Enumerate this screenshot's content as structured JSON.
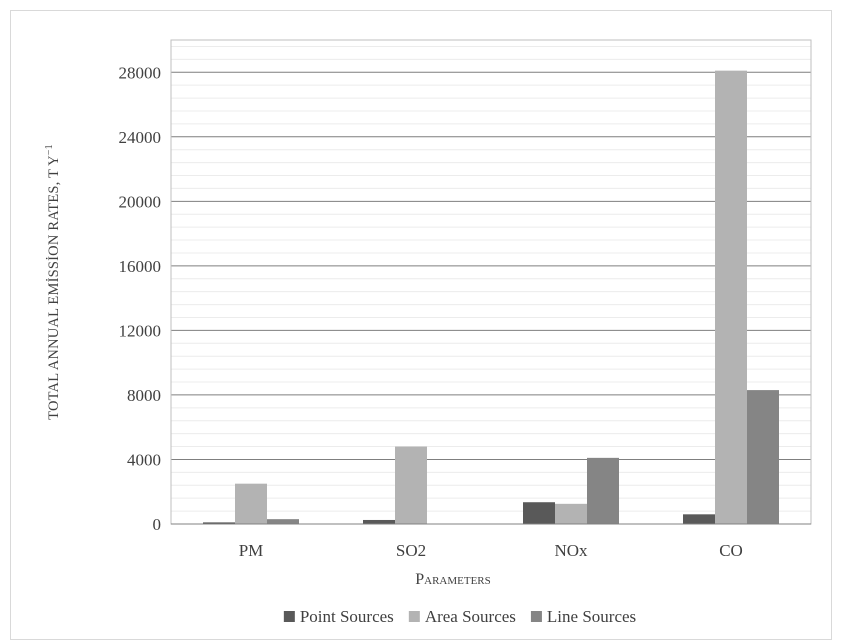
{
  "chart_data": {
    "type": "bar",
    "title": "",
    "xlabel": "Parameters",
    "ylabel": "TOTAL ANNUAL EMİSSİON RATES, T Y",
    "ylabel_sup": "−1",
    "categories": [
      "PM",
      "SO2",
      "NOx",
      "CO"
    ],
    "ylim": [
      0,
      30000
    ],
    "yticks": [
      0,
      4000,
      8000,
      12000,
      16000,
      20000,
      24000,
      28000
    ],
    "grid": true,
    "legend_position": "bottom",
    "series": [
      {
        "name": "Point Sources",
        "color": "#595959",
        "values": [
          100,
          250,
          1350,
          600
        ]
      },
      {
        "name": "Area Sources",
        "color": "#b3b3b3",
        "values": [
          2500,
          4800,
          1250,
          28100
        ]
      },
      {
        "name": "Line Sources",
        "color": "#858585",
        "values": [
          300,
          0,
          4100,
          8300
        ]
      }
    ]
  }
}
